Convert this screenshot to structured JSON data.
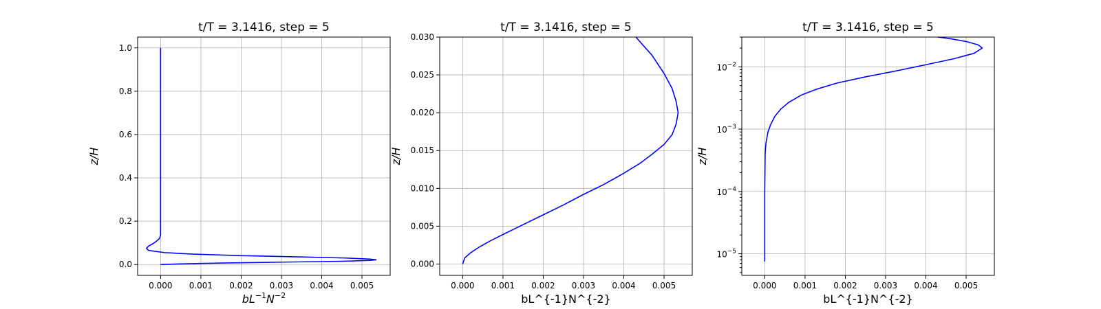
{
  "colors": {
    "line": "#0000ff",
    "grid": "#b0b0b0",
    "background": "#ffffff"
  },
  "chart_data": [
    {
      "type": "line",
      "title": "t/T = 3.1416, step = 5",
      "xlabel": "bL⁻¹N⁻²",
      "ylabel": "z/H",
      "xlim": [
        -0.00057,
        0.0057
      ],
      "ylim": [
        -0.05,
        1.05
      ],
      "yscale": "linear",
      "grid": true,
      "xticks": [
        0,
        0.001,
        0.002,
        0.003,
        0.004,
        0.005
      ],
      "xtick_labels": [
        "0.000",
        "0.001",
        "0.002",
        "0.003",
        "0.004",
        "0.005"
      ],
      "yticks": [
        0,
        0.2,
        0.4,
        0.6,
        0.8,
        1.0
      ],
      "ytick_labels": [
        "0.0",
        "0.2",
        "0.4",
        "0.6",
        "0.8",
        "1.0"
      ],
      "series": [
        {
          "x": [
            0,
            0.0005,
            0.0015,
            0.003,
            0.0045,
            0.0052,
            0.00535,
            0.0052,
            0.0046,
            0.0035,
            0.002,
            0.0008,
            0.0001,
            -0.0003,
            -0.00035,
            -0.0003,
            -0.0002,
            -0.0001,
            -3e-05,
            0,
            0,
            0,
            0,
            0,
            0
          ],
          "y": [
            0,
            0.003,
            0.007,
            0.011,
            0.015,
            0.019,
            0.022,
            0.025,
            0.03,
            0.035,
            0.041,
            0.048,
            0.055,
            0.065,
            0.075,
            0.085,
            0.095,
            0.108,
            0.12,
            0.135,
            0.2,
            0.4,
            0.6,
            0.8,
            1.0
          ]
        }
      ]
    },
    {
      "type": "line",
      "title": "t/T = 3.1416, step = 5",
      "xlabel": "bL^{-1}N^{-2}",
      "ylabel": "z/H",
      "xlim": [
        -0.00057,
        0.0057
      ],
      "ylim": [
        -0.0015,
        0.03
      ],
      "yscale": "linear",
      "grid": true,
      "xticks": [
        0,
        0.001,
        0.002,
        0.003,
        0.004,
        0.005
      ],
      "xtick_labels": [
        "0.000",
        "0.001",
        "0.002",
        "0.003",
        "0.004",
        "0.005"
      ],
      "yticks": [
        0,
        0.005,
        0.01,
        0.015,
        0.02,
        0.025,
        0.03
      ],
      "ytick_labels": [
        "0.000",
        "0.005",
        "0.010",
        "0.015",
        "0.020",
        "0.025",
        "0.030"
      ],
      "series": [
        {
          "x": [
            0,
            5e-05,
            0.0002,
            0.0004,
            0.0007,
            0.001,
            0.0015,
            0.002,
            0.0025,
            0.003,
            0.0035,
            0.004,
            0.0044,
            0.0047,
            0.005,
            0.0052,
            0.0053,
            0.00535,
            0.0053,
            0.0052,
            0.005,
            0.0047,
            0.0043
          ],
          "y": [
            0,
            0.0008,
            0.0015,
            0.0022,
            0.0031,
            0.0039,
            0.0052,
            0.0065,
            0.0078,
            0.0092,
            0.0105,
            0.012,
            0.0133,
            0.0145,
            0.0158,
            0.0171,
            0.0185,
            0.02,
            0.0215,
            0.0232,
            0.0252,
            0.0276,
            0.03
          ]
        }
      ]
    },
    {
      "type": "line",
      "title": "t/T = 3.1416, step = 5",
      "xlabel": "bL^{-1}N^{-2}",
      "ylabel": "z/H",
      "xlim": [
        -0.00057,
        0.0057
      ],
      "ylim": [
        4.5e-06,
        0.03
      ],
      "yscale": "log",
      "grid": true,
      "xticks": [
        0,
        0.001,
        0.002,
        0.003,
        0.004,
        0.005
      ],
      "xtick_labels": [
        "0.000",
        "0.001",
        "0.002",
        "0.003",
        "0.004",
        "0.005"
      ],
      "yticks": [
        1e-05,
        0.0001,
        0.001,
        0.01
      ],
      "ytick_labels": [
        {
          "base": "10",
          "exp": "−5"
        },
        {
          "base": "10",
          "exp": "−4"
        },
        {
          "base": "10",
          "exp": "−3"
        },
        {
          "base": "10",
          "exp": "−2"
        }
      ],
      "series": [
        {
          "x": [
            0,
            0,
            1e-05,
            3e-05,
            8e-05,
            0.00015,
            0.00025,
            0.0004,
            0.0006,
            0.0009,
            0.0013,
            0.0018,
            0.0025,
            0.0033,
            0.004,
            0.0047,
            0.0052,
            0.0054,
            0.0053,
            0.005,
            0.0046,
            0.0043
          ],
          "y": [
            7.5e-06,
            0.0001,
            0.0004,
            0.0006,
            0.0009,
            0.0012,
            0.0016,
            0.0021,
            0.0027,
            0.0035,
            0.0044,
            0.0055,
            0.0069,
            0.0087,
            0.0108,
            0.0135,
            0.0165,
            0.02,
            0.0225,
            0.0255,
            0.0283,
            0.03
          ]
        }
      ]
    }
  ]
}
